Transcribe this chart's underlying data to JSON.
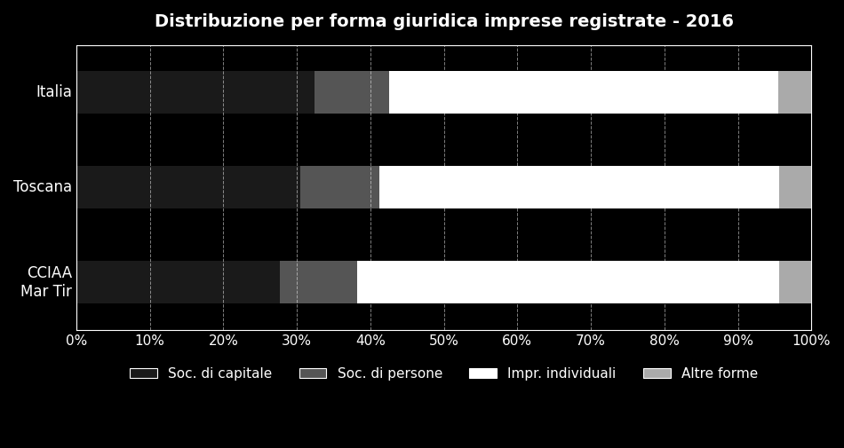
{
  "title": "Distribuzione per forma giuridica imprese registrate - 2016",
  "categories": [
    "CCIAA\nMar Tir",
    "Toscana",
    "Italia"
  ],
  "series": {
    "Soc. di capitale": [
      0.277,
      0.305,
      0.324
    ],
    "Soc. di persone": [
      0.105,
      0.107,
      0.101
    ],
    "Impr. individuali": [
      0.574,
      0.544,
      0.53
    ],
    "Altre forme": [
      0.044,
      0.044,
      0.045
    ]
  },
  "colors": {
    "Soc. di capitale": "#1a1a1a",
    "Soc. di persone": "#555555",
    "Impr. individuali": "#ffffff",
    "Altre forme": "#aaaaaa"
  },
  "background_color": "#000000",
  "text_color": "#ffffff",
  "grid_color": "#ffffff",
  "title_fontsize": 14,
  "label_fontsize": 12,
  "tick_fontsize": 11,
  "legend_fontsize": 11
}
